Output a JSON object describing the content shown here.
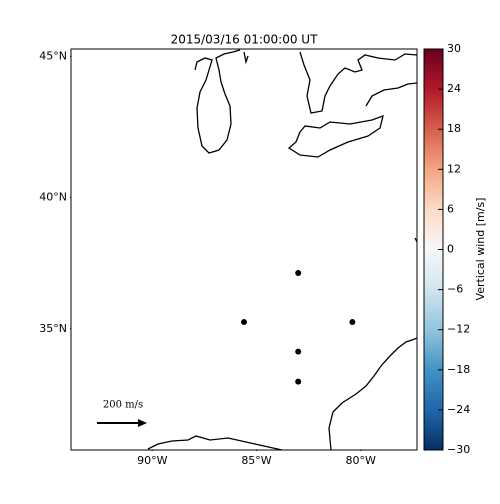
{
  "chart_data": {
    "type": "scatter",
    "title": "2015/03/16 01:00:00 UT",
    "xlim": [
      -93.9,
      -77.3
    ],
    "ylim": [
      30.1,
      45.25
    ],
    "xticks": [
      {
        "value": -90,
        "label": "90°W"
      },
      {
        "value": -85,
        "label": "85°W"
      },
      {
        "value": -80,
        "label": "80°W"
      }
    ],
    "yticks": [
      {
        "value": 35,
        "label": "35°N"
      },
      {
        "value": 40,
        "label": "40°N"
      },
      {
        "value": 45,
        "label": "45°N"
      }
    ],
    "x": [
      -83.0,
      -85.6,
      -80.4,
      -83.0,
      -83.0
    ],
    "y": [
      37.17,
      35.27,
      35.27,
      34.1,
      32.9
    ],
    "color": "#000000",
    "quiver_key": "200 m/s",
    "colorbar": {
      "label": "Vertical wind [m/s]",
      "lim": [
        -30,
        30
      ],
      "ticks": [
        {
          "value": -30,
          "label": "−30"
        },
        {
          "value": -24,
          "label": "−24"
        },
        {
          "value": -18,
          "label": "−18"
        },
        {
          "value": -12,
          "label": "−12"
        },
        {
          "value": -6,
          "label": "−6"
        },
        0,
        6,
        12,
        18,
        24,
        30
      ],
      "colors": [
        "#053061",
        "#2166ac",
        "#4393c3",
        "#92c5de",
        "#d1e5f0",
        "#f7f7f7",
        "#fddbc7",
        "#f4a582",
        "#d6604d",
        "#b2182b",
        "#67001f"
      ]
    }
  }
}
